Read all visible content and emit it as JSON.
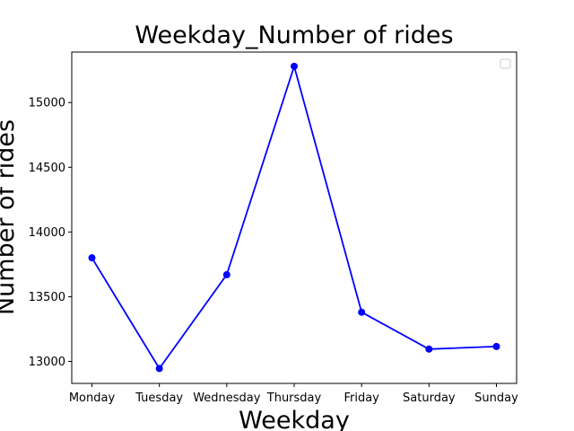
{
  "chart_data": {
    "type": "line",
    "title": "Weekday_Number of rides",
    "xlabel": "Weekday",
    "ylabel": "Number of rides",
    "categories": [
      "Monday",
      "Tuesday",
      "Wednesday",
      "Thursday",
      "Friday",
      "Saturday",
      "Sunday"
    ],
    "series": [
      {
        "values": [
          13800,
          12945,
          13670,
          15280,
          13380,
          13095,
          13115
        ],
        "color": "#0000ff",
        "marker": "circle"
      }
    ],
    "yticks": [
      13000,
      13500,
      14000,
      14500,
      15000
    ],
    "ylim": [
      12830,
      15390
    ],
    "grid": false,
    "legend": {
      "placement": "top-right",
      "entries": []
    }
  }
}
